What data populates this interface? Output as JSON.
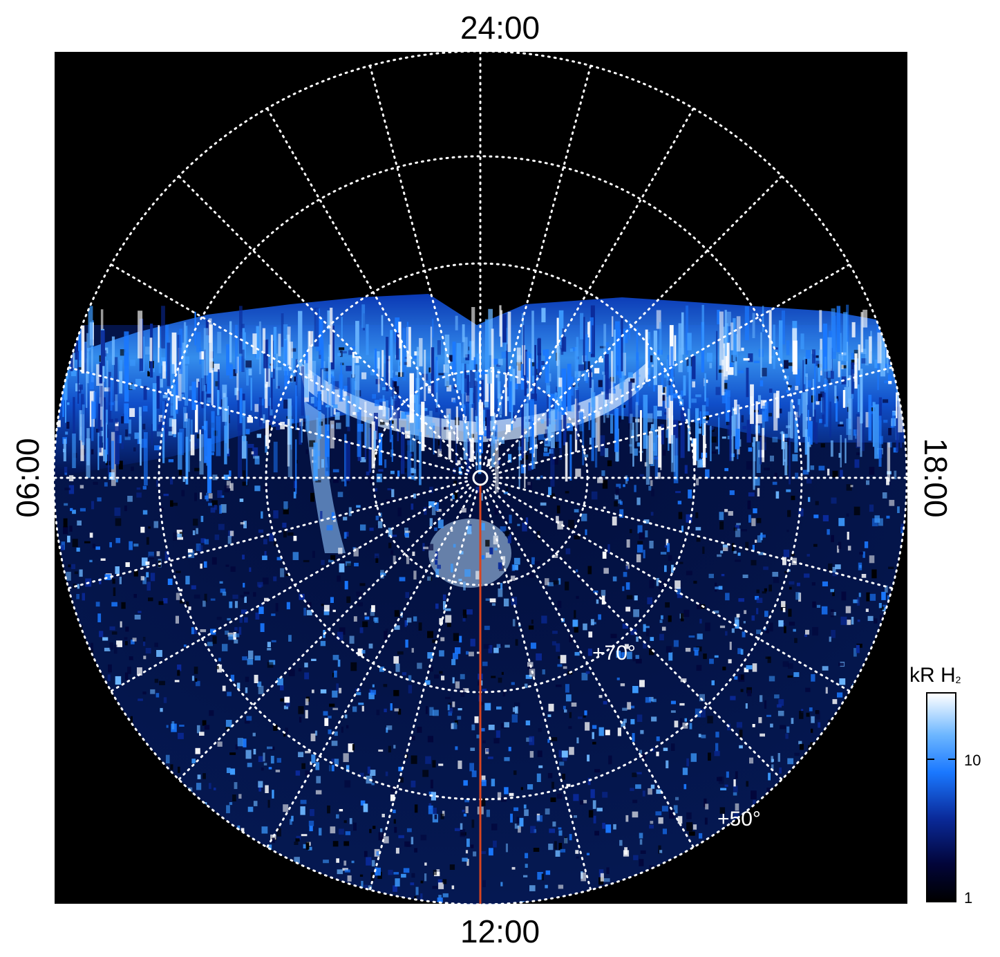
{
  "local_time_labels": {
    "top": "24:00",
    "bottom": "12:00",
    "left": "06:00",
    "right": "18:00"
  },
  "latitude_labels": {
    "lat70": "+70°",
    "lat50": "+50°"
  },
  "colorbar": {
    "title": "kR H",
    "title_subscript": "2",
    "tick_10": "10",
    "tick_1": "1"
  },
  "colors": {
    "background": "#000000",
    "grid": "#ffffff",
    "meridian_line": "#d8441e",
    "aurora_dim": "#02053a",
    "aurora_mid": "#1a78ff",
    "aurora_bright": "#ffffff"
  }
}
